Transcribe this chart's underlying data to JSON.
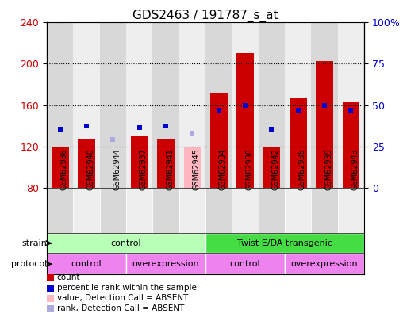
{
  "title": "GDS2463 / 191787_s_at",
  "samples": [
    "GSM62936",
    "GSM62940",
    "GSM62944",
    "GSM62937",
    "GSM62941",
    "GSM62945",
    "GSM62934",
    "GSM62938",
    "GSM62942",
    "GSM62935",
    "GSM62939",
    "GSM62943"
  ],
  "counts": [
    120,
    127,
    null,
    130,
    127,
    null,
    172,
    210,
    120,
    167,
    203,
    163
  ],
  "counts_absent": [
    null,
    null,
    null,
    null,
    null,
    120,
    null,
    null,
    null,
    null,
    null,
    null
  ],
  "ranks": [
    137,
    140,
    null,
    138,
    140,
    null,
    155,
    160,
    137,
    155,
    160,
    155
  ],
  "ranks_absent": [
    null,
    null,
    127,
    null,
    null,
    133,
    null,
    null,
    null,
    null,
    null,
    null
  ],
  "ylim": [
    80,
    240
  ],
  "y2lim": [
    0,
    100
  ],
  "yticks": [
    80,
    120,
    160,
    200,
    240
  ],
  "y2ticks": [
    0,
    25,
    50,
    75,
    100
  ],
  "bar_color": "#CC0000",
  "bar_absent_color": "#FFB6C1",
  "rank_color": "#0000CC",
  "rank_absent_color": "#AAAADD",
  "label_color_left": "#CC0000",
  "label_color_right": "#0000CC",
  "strain_labels": [
    "control",
    "Twist E/DA transgenic"
  ],
  "strain_starts": [
    0,
    6
  ],
  "strain_ends": [
    6,
    12
  ],
  "strain_color_light": "#B8FFB8",
  "strain_color_dark": "#44DD44",
  "protocol_labels": [
    "control",
    "overexpression",
    "control",
    "overexpression"
  ],
  "protocol_starts": [
    0,
    3,
    6,
    9
  ],
  "protocol_ends": [
    3,
    6,
    9,
    12
  ],
  "protocol_color": "#EE82EE",
  "col_bg_even": "#D8D8D8",
  "col_bg_odd": "#EEEEEE",
  "legend_items": [
    {
      "color": "#CC0000",
      "label": "count"
    },
    {
      "color": "#0000CC",
      "label": "percentile rank within the sample"
    },
    {
      "color": "#FFB6C1",
      "label": "value, Detection Call = ABSENT"
    },
    {
      "color": "#AAAADD",
      "label": "rank, Detection Call = ABSENT"
    }
  ]
}
